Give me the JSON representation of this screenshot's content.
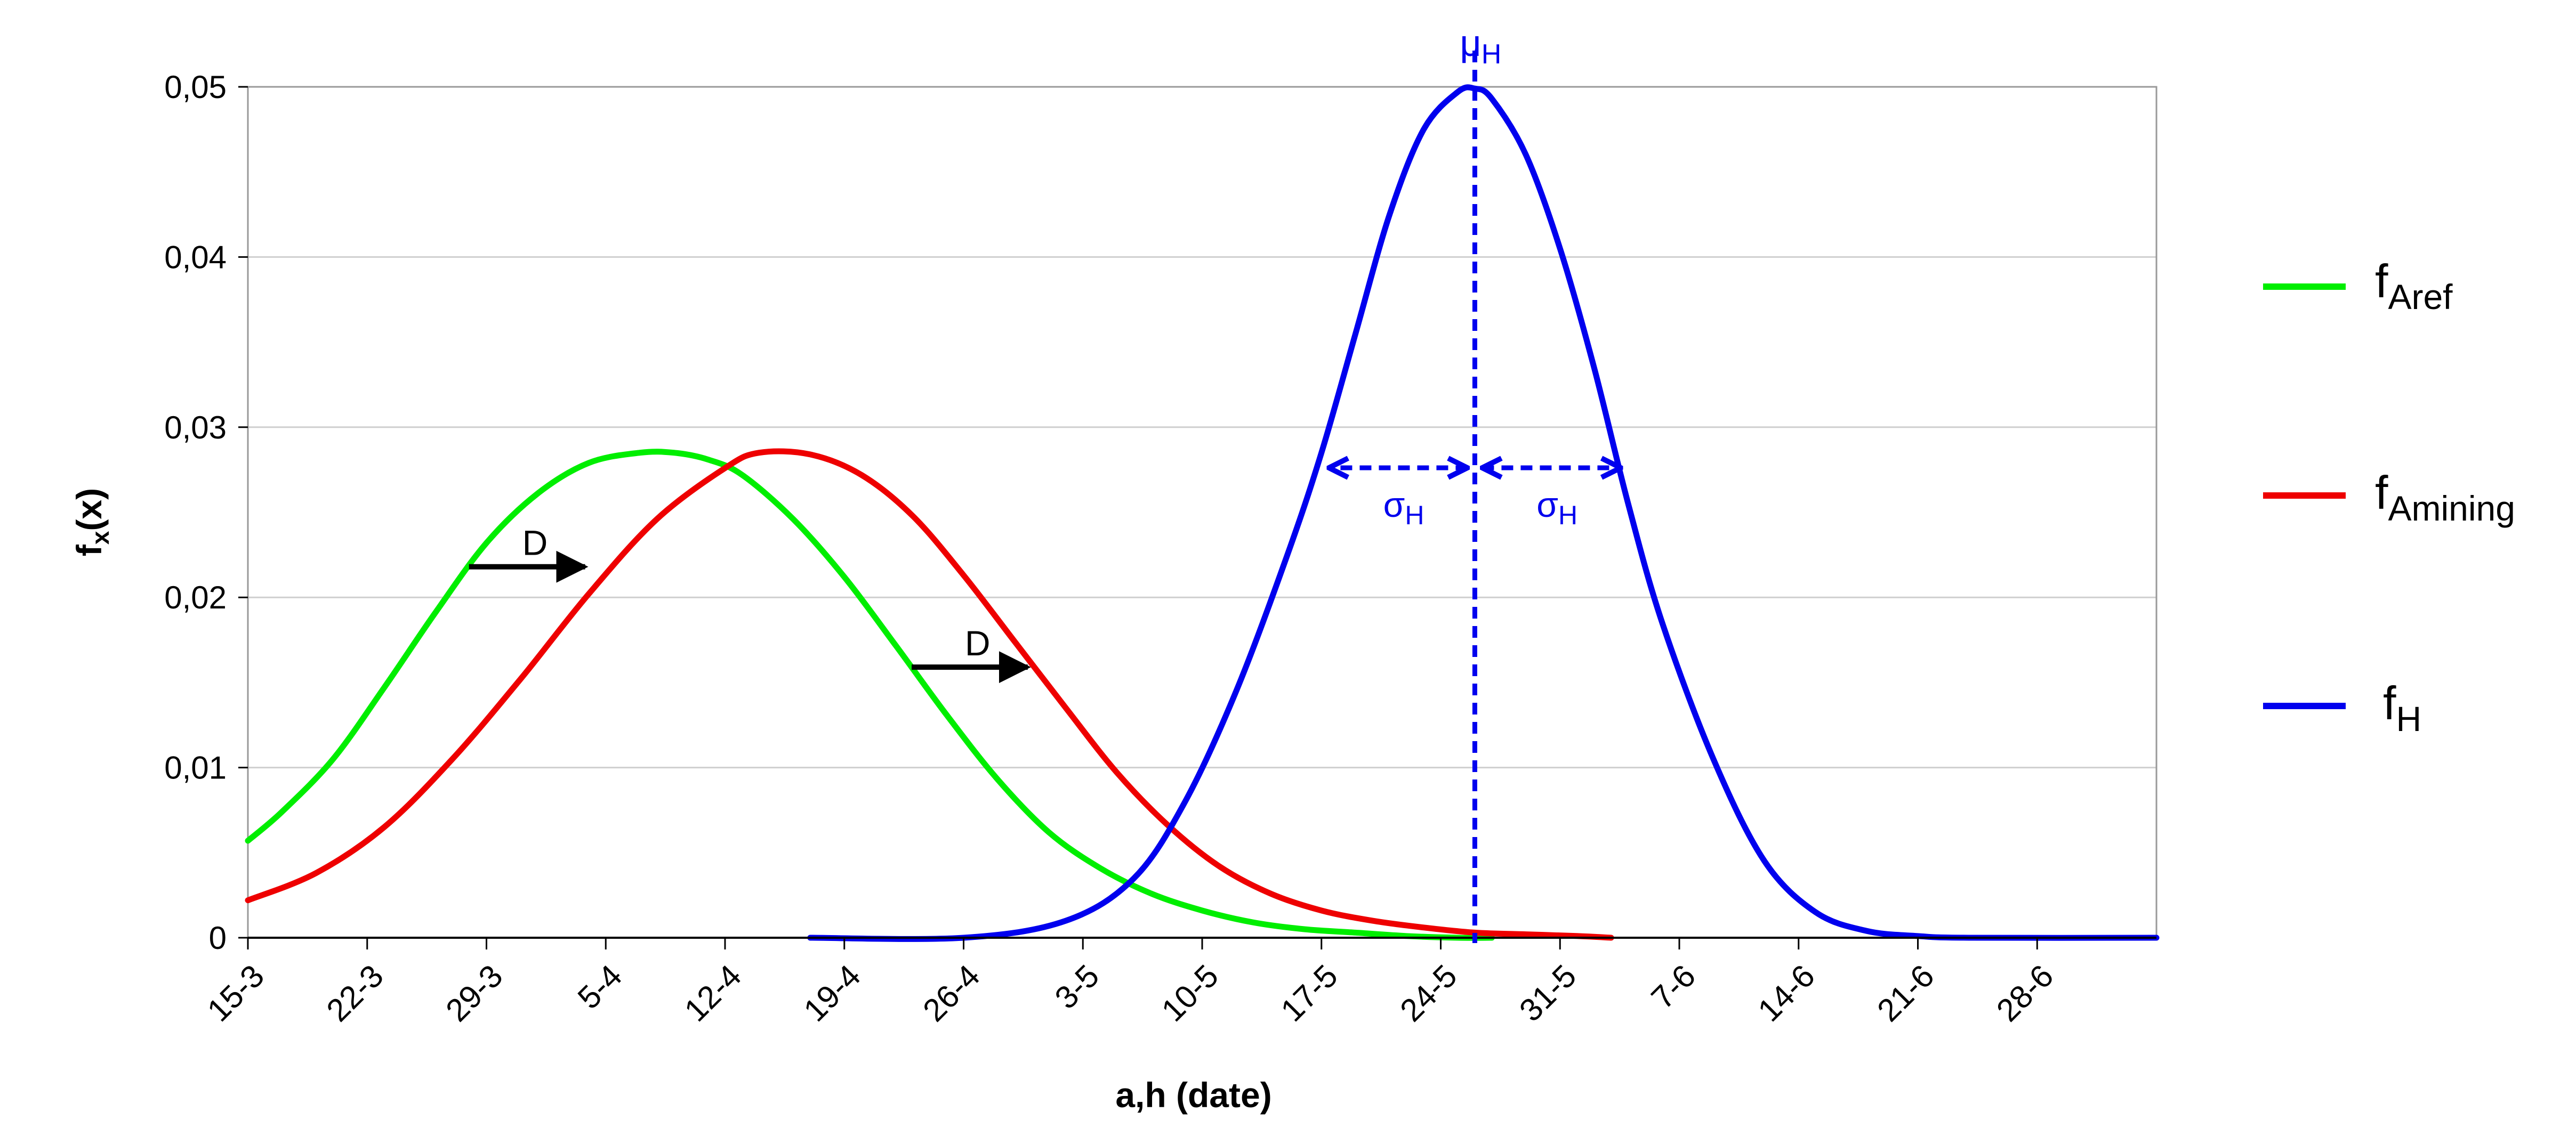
{
  "chart_data": {
    "type": "line",
    "xlabel": "a,h (date)",
    "ylabel_main": "f",
    "ylabel_sub": "x",
    "ylabel_tail": "(x)",
    "x_range": [
      "15-3",
      "5-7"
    ],
    "ylim": [
      0,
      0.05
    ],
    "grid": true,
    "legend_position": "right",
    "x_tick_labels": [
      "15-3",
      "22-3",
      "29-3",
      "5-4",
      "12-4",
      "19-4",
      "26-4",
      "3-5",
      "10-5",
      "17-5",
      "24-5",
      "31-5",
      "7-6",
      "14-6",
      "21-6",
      "28-6"
    ],
    "y_ticks": [
      {
        "value": 0,
        "label": "0"
      },
      {
        "value": 0.01,
        "label": "0,01"
      },
      {
        "value": 0.02,
        "label": "0,02"
      },
      {
        "value": 0.03,
        "label": "0,03"
      },
      {
        "value": 0.04,
        "label": "0,04"
      },
      {
        "value": 0.05,
        "label": "0,05"
      }
    ],
    "series": [
      {
        "name": "fAref",
        "label_main": "f",
        "label_sub": "Aref",
        "color": "#00ee00",
        "x": [
          "15-3",
          "17-3",
          "20-3",
          "23-3",
          "26-3",
          "29-3",
          "1-4",
          "4-4",
          "7-4",
          "9-4",
          "11-4",
          "13-4",
          "16-4",
          "19-4",
          "22-4",
          "25-4",
          "28-4",
          "1-5",
          "4-5",
          "7-5",
          "10-5",
          "13-5",
          "16-5",
          "19-5",
          "22-5",
          "25-5",
          "27-5"
        ],
        "y": [
          0.0057,
          0.0074,
          0.0105,
          0.0147,
          0.0191,
          0.0232,
          0.0261,
          0.0279,
          0.0285,
          0.0285,
          0.0281,
          0.0272,
          0.0246,
          0.0212,
          0.0172,
          0.0131,
          0.0093,
          0.0062,
          0.0041,
          0.0026,
          0.0016,
          0.0009,
          0.0005,
          0.0003,
          0.0001,
          0.0,
          0.0
        ]
      },
      {
        "name": "fAmining",
        "label_main": "f",
        "label_sub": "Amining",
        "color": "#ee0000",
        "x": [
          "15-3",
          "19-3",
          "23-3",
          "27-3",
          "31-3",
          "4-4",
          "8-4",
          "12-4",
          "14-4",
          "17-4",
          "20-4",
          "23-4",
          "26-4",
          "29-4",
          "2-5",
          "5-5",
          "8-5",
          "11-5",
          "14-5",
          "17-5",
          "20-5",
          "23-5",
          "26-5",
          "29-5",
          "1-6",
          "3-6"
        ],
        "y": [
          0.0022,
          0.0038,
          0.0065,
          0.0105,
          0.0152,
          0.0202,
          0.0246,
          0.0276,
          0.0285,
          0.0284,
          0.0272,
          0.0248,
          0.0213,
          0.0174,
          0.0135,
          0.0097,
          0.0066,
          0.0042,
          0.0026,
          0.0016,
          0.001,
          0.0006,
          0.0003,
          0.0002,
          0.0001,
          0.0
        ]
      },
      {
        "name": "fH",
        "label_main": "f",
        "label_sub": "H",
        "color": "#0000ee",
        "x": [
          "17-4",
          "26-4",
          "2-5",
          "6-5",
          "9-5",
          "12-5",
          "15-5",
          "17-5",
          "19-5",
          "21-5",
          "23-5",
          "25-5",
          "26-5",
          "27-5",
          "29-5",
          "31-5",
          "2-6",
          "4-6",
          "6-6",
          "9-6",
          "12-6",
          "15-6",
          "18-6",
          "21-6",
          "24-6",
          "5-7"
        ],
        "y": [
          0.0,
          0.0,
          0.001,
          0.0035,
          0.008,
          0.0145,
          0.0225,
          0.0285,
          0.0355,
          0.0425,
          0.0475,
          0.0497,
          0.0499,
          0.0493,
          0.046,
          0.0405,
          0.0335,
          0.0255,
          0.0185,
          0.0105,
          0.0045,
          0.0015,
          0.0004,
          0.0001,
          0.0,
          0.0
        ]
      }
    ],
    "annotations": {
      "shift_label": "D",
      "mu_main": "μ",
      "mu_sub": "H",
      "mu_x": "26-5",
      "sigma_main": "σ",
      "sigma_sub": "H",
      "sigma_days": 9
    }
  }
}
